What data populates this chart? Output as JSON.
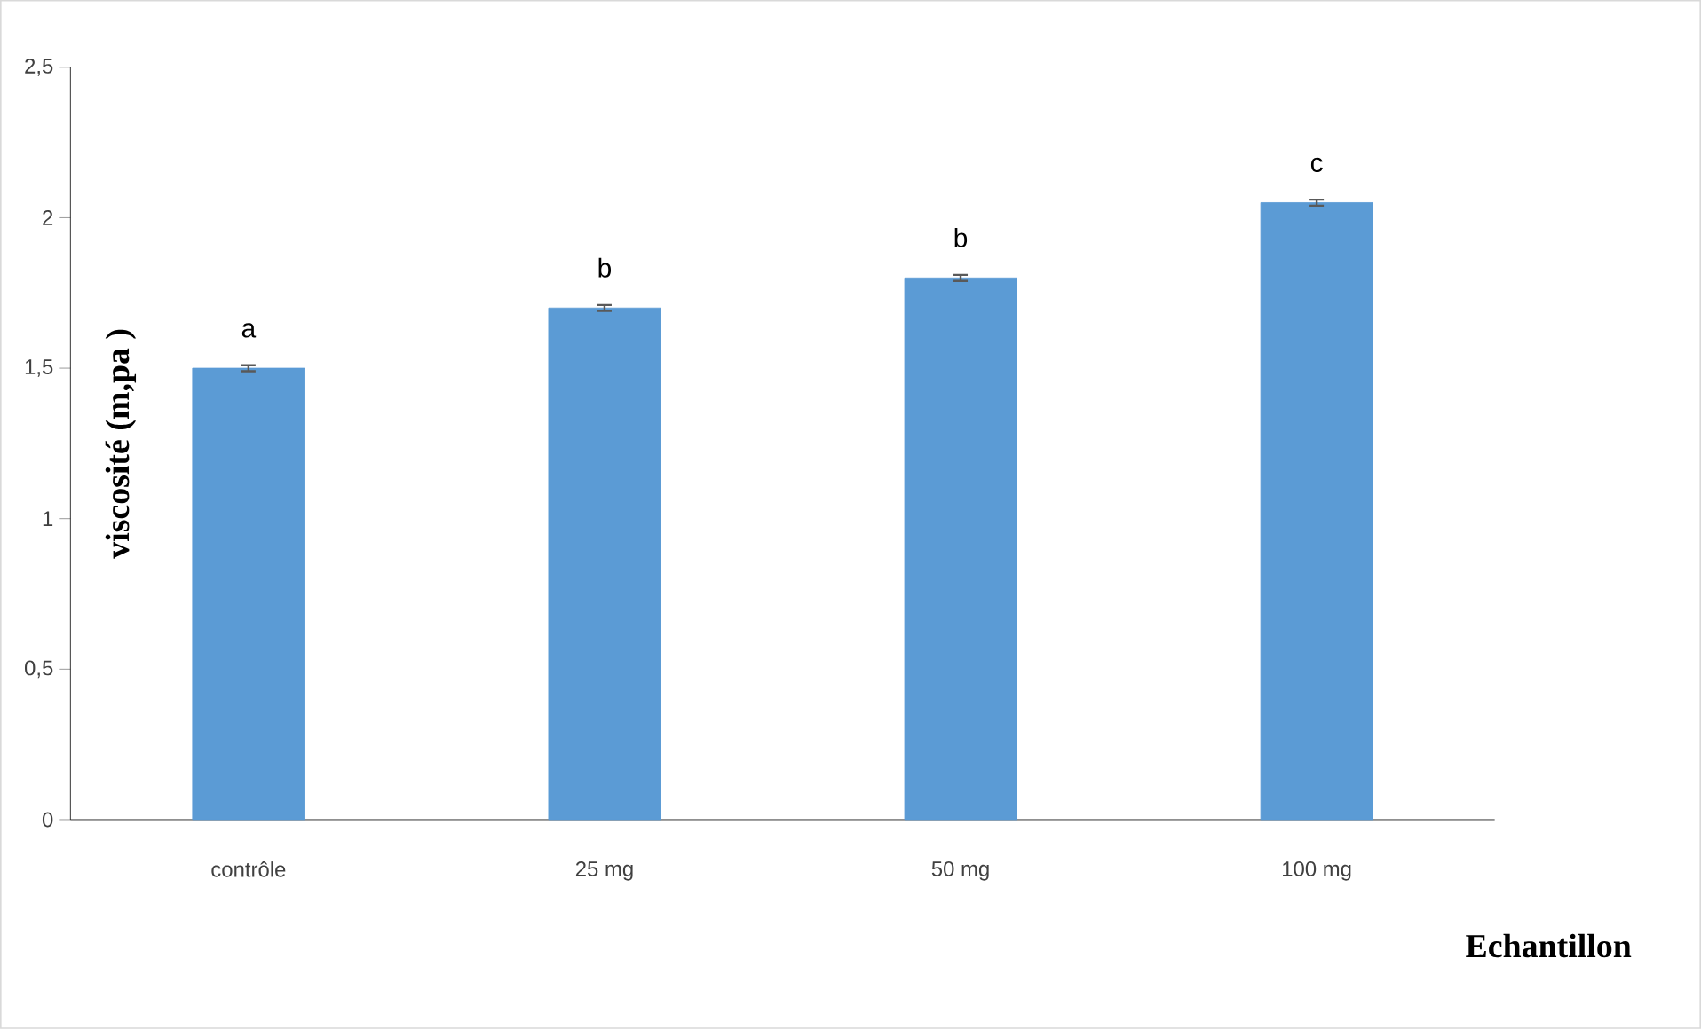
{
  "chart_data": {
    "type": "bar",
    "xlabel": "Echantillon",
    "ylabel": "viscosité (m,pa )",
    "categories": [
      "contrôle",
      "25 mg",
      "50 mg",
      "100 mg"
    ],
    "values": [
      1.5,
      1.7,
      1.8,
      2.05
    ],
    "errors": [
      0.01,
      0.01,
      0.01,
      0.01
    ],
    "color": "#5b9bd5",
    "ylim": [
      0,
      2.5
    ],
    "yticks": [
      0,
      {
        "value": 0.5,
        "label": "0,5"
      },
      1,
      {
        "value": 1.5,
        "label": "1,5"
      },
      2,
      {
        "value": 2.5,
        "label": "2,5"
      }
    ],
    "annotations": [
      "a",
      "b",
      "b",
      "c"
    ]
  }
}
